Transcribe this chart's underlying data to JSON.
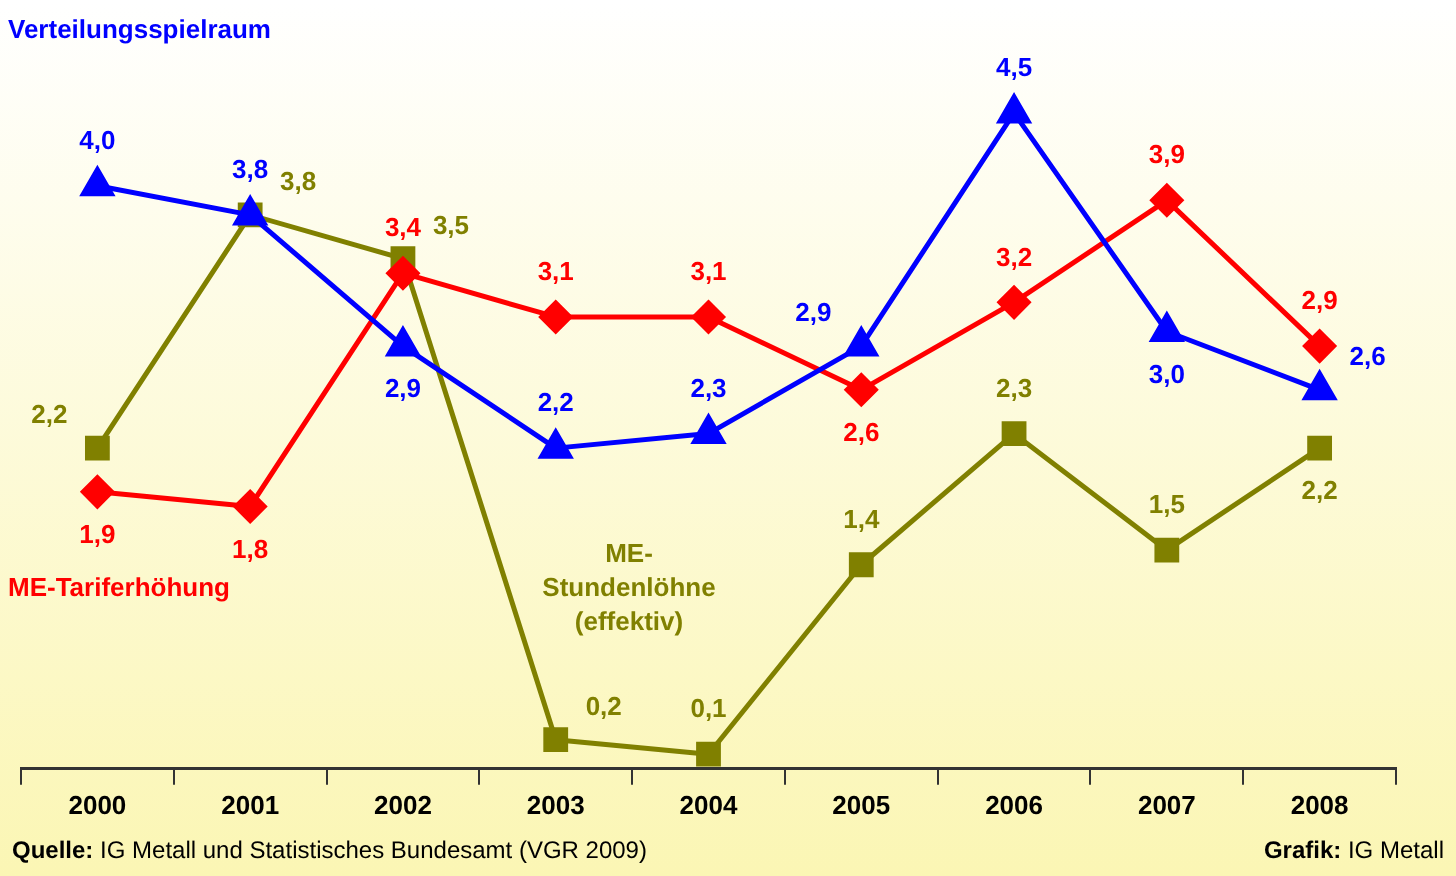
{
  "chart_data": {
    "type": "line",
    "categories": [
      "2000",
      "2001",
      "2002",
      "2003",
      "2004",
      "2005",
      "2006",
      "2007",
      "2008"
    ],
    "series": [
      {
        "name": "Verteilungsspielraum",
        "color": "#0000ff",
        "marker": "triangle",
        "values": [
          4.0,
          3.8,
          2.9,
          2.2,
          2.3,
          2.9,
          4.5,
          3.0,
          2.6
        ],
        "value_labels": [
          "4,0",
          "3,8",
          "2,9",
          "2,2",
          "2,3",
          "2,9",
          "4,5",
          "3,0",
          "2,6"
        ]
      },
      {
        "name": "ME-Tariferhöhung",
        "color": "#ff0000",
        "marker": "diamond",
        "values": [
          1.9,
          1.8,
          3.4,
          3.1,
          3.1,
          2.6,
          3.2,
          3.9,
          2.9
        ],
        "value_labels": [
          "1,9",
          "1,8",
          "3,4",
          "3,1",
          "3,1",
          "2,6",
          "3,2",
          "3,9",
          "2,9"
        ]
      },
      {
        "name": "ME-Stundenlöhne (effektiv)",
        "color": "#808000",
        "marker": "square",
        "values": [
          2.2,
          3.8,
          3.5,
          0.2,
          0.1,
          1.4,
          2.3,
          1.5,
          2.2
        ],
        "value_labels": [
          "2,2",
          "3,8",
          "3,5",
          "0,2",
          "0,1",
          "1,4",
          "2,3",
          "1,5",
          "2,2"
        ]
      }
    ],
    "legend": false,
    "annotations": [
      "Quelle: IG Metall und Statistisches Bundesamt (VGR 2009)",
      "Grafik: IG Metall"
    ]
  }
}
